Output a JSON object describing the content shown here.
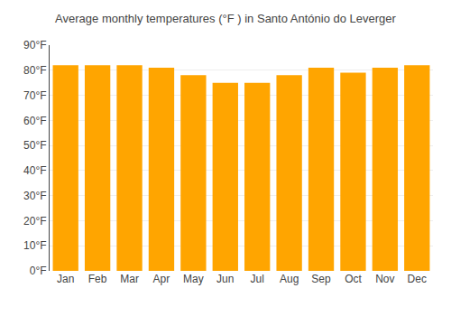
{
  "chart_data": {
    "type": "bar",
    "title": "Average monthly temperatures (°F ) in Santo António do Leverger",
    "categories": [
      "Jan",
      "Feb",
      "Mar",
      "Apr",
      "May",
      "Jun",
      "Jul",
      "Aug",
      "Sep",
      "Oct",
      "Nov",
      "Dec"
    ],
    "values": [
      82,
      82,
      82,
      81,
      78,
      75,
      75,
      78,
      81,
      79,
      81,
      82
    ],
    "color": "#FFA500",
    "ylim": [
      0,
      90
    ],
    "yticks": [
      {
        "value": 0,
        "label": "0°F"
      },
      {
        "value": 10,
        "label": "10°F"
      },
      {
        "value": 20,
        "label": "20°F"
      },
      {
        "value": 30,
        "label": "30°F"
      },
      {
        "value": 40,
        "label": "40°F"
      },
      {
        "value": 50,
        "label": "50°F"
      },
      {
        "value": 60,
        "label": "60°F"
      },
      {
        "value": 70,
        "label": "70°F"
      },
      {
        "value": 80,
        "label": "80°F"
      },
      {
        "value": 90,
        "label": "90°F"
      }
    ],
    "grid": true
  }
}
